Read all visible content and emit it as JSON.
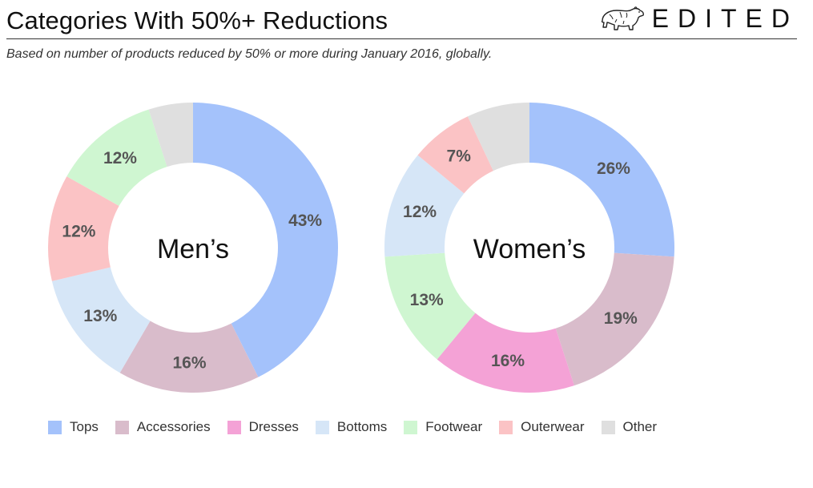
{
  "header": {
    "title": "Categories With 50%+ Reductions",
    "brand": "EDITED",
    "subtitle": "Based on number of products reduced by 50% or more during January 2016, globally."
  },
  "colors": {
    "Tops": "#a4c2fb",
    "Accessories": "#d9bccb",
    "Dresses": "#f4a2d6",
    "Bottoms": "#d6e6f7",
    "Footwear": "#cff6d1",
    "Outerwear": "#fbc3c5",
    "Other": "#dfdfdf"
  },
  "legend": [
    "Tops",
    "Accessories",
    "Dresses",
    "Bottoms",
    "Footwear",
    "Outerwear",
    "Other"
  ],
  "chart_data": [
    {
      "type": "pie",
      "variant": "donut",
      "center_label": "Men’s",
      "slices": [
        {
          "category": "Tops",
          "value": 43,
          "label": "43%"
        },
        {
          "category": "Accessories",
          "value": 16,
          "label": "16%"
        },
        {
          "category": "Bottoms",
          "value": 13,
          "label": "13%"
        },
        {
          "category": "Outerwear",
          "value": 12,
          "label": "12%"
        },
        {
          "category": "Footwear",
          "value": 12,
          "label": "12%"
        },
        {
          "category": "Other",
          "value": 5,
          "label": ""
        }
      ]
    },
    {
      "type": "pie",
      "variant": "donut",
      "center_label": "Women’s",
      "slices": [
        {
          "category": "Tops",
          "value": 26,
          "label": "26%"
        },
        {
          "category": "Accessories",
          "value": 19,
          "label": "19%"
        },
        {
          "category": "Dresses",
          "value": 16,
          "label": "16%"
        },
        {
          "category": "Footwear",
          "value": 13,
          "label": "13%"
        },
        {
          "category": "Bottoms",
          "value": 12,
          "label": "12%"
        },
        {
          "category": "Outerwear",
          "value": 7,
          "label": "7%"
        },
        {
          "category": "Other",
          "value": 7,
          "label": ""
        }
      ]
    }
  ]
}
